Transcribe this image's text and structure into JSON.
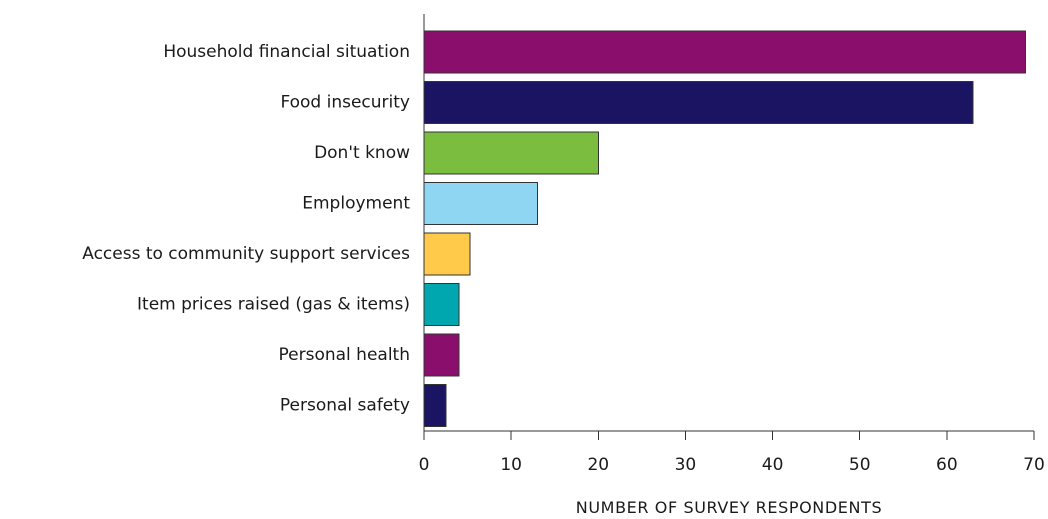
{
  "chart_data": {
    "type": "bar",
    "orientation": "horizontal",
    "categories": [
      "Household financial situation",
      "Food insecurity",
      "Don't know",
      "Employment",
      "Access to community support services",
      "Item prices raised (gas & items)",
      "Personal health",
      "Personal safety"
    ],
    "values": [
      69,
      63,
      20,
      13,
      5.3,
      4,
      4,
      2.5
    ],
    "colors": [
      "#8a0f6d",
      "#1b1463",
      "#7bbd3f",
      "#8fd6f2",
      "#ffc94a",
      "#00a7ae",
      "#8a0f6d",
      "#1b1463"
    ],
    "xlabel": "NUMBER OF SURVEY RESPONDENTS",
    "ylabel": "",
    "xlim": [
      0,
      70
    ],
    "xticks": [
      "0",
      "10",
      "20",
      "30",
      "40",
      "50",
      "60",
      "70"
    ],
    "grid": false,
    "legend": "none"
  }
}
